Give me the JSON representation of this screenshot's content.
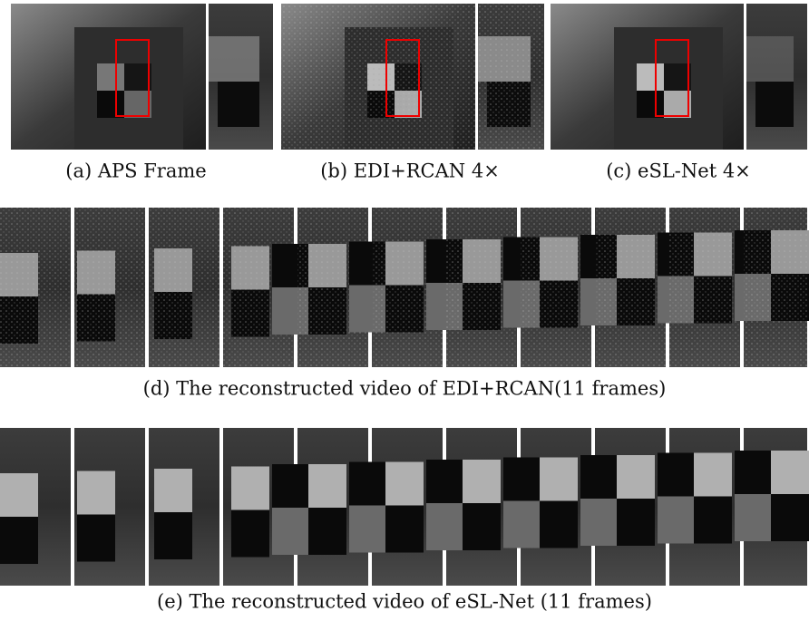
{
  "panels": [
    {
      "caption": "(a) APS Frame"
    },
    {
      "caption": "(b) EDI+RCAN 4×"
    },
    {
      "caption": "(c) eSL-Net 4×"
    }
  ],
  "rows": [
    {
      "caption": "(d) The reconstructed video of EDI+RCAN(11 frames)"
    },
    {
      "caption": "(e) The reconstructed video of eSL-Net (11 frames)"
    }
  ]
}
